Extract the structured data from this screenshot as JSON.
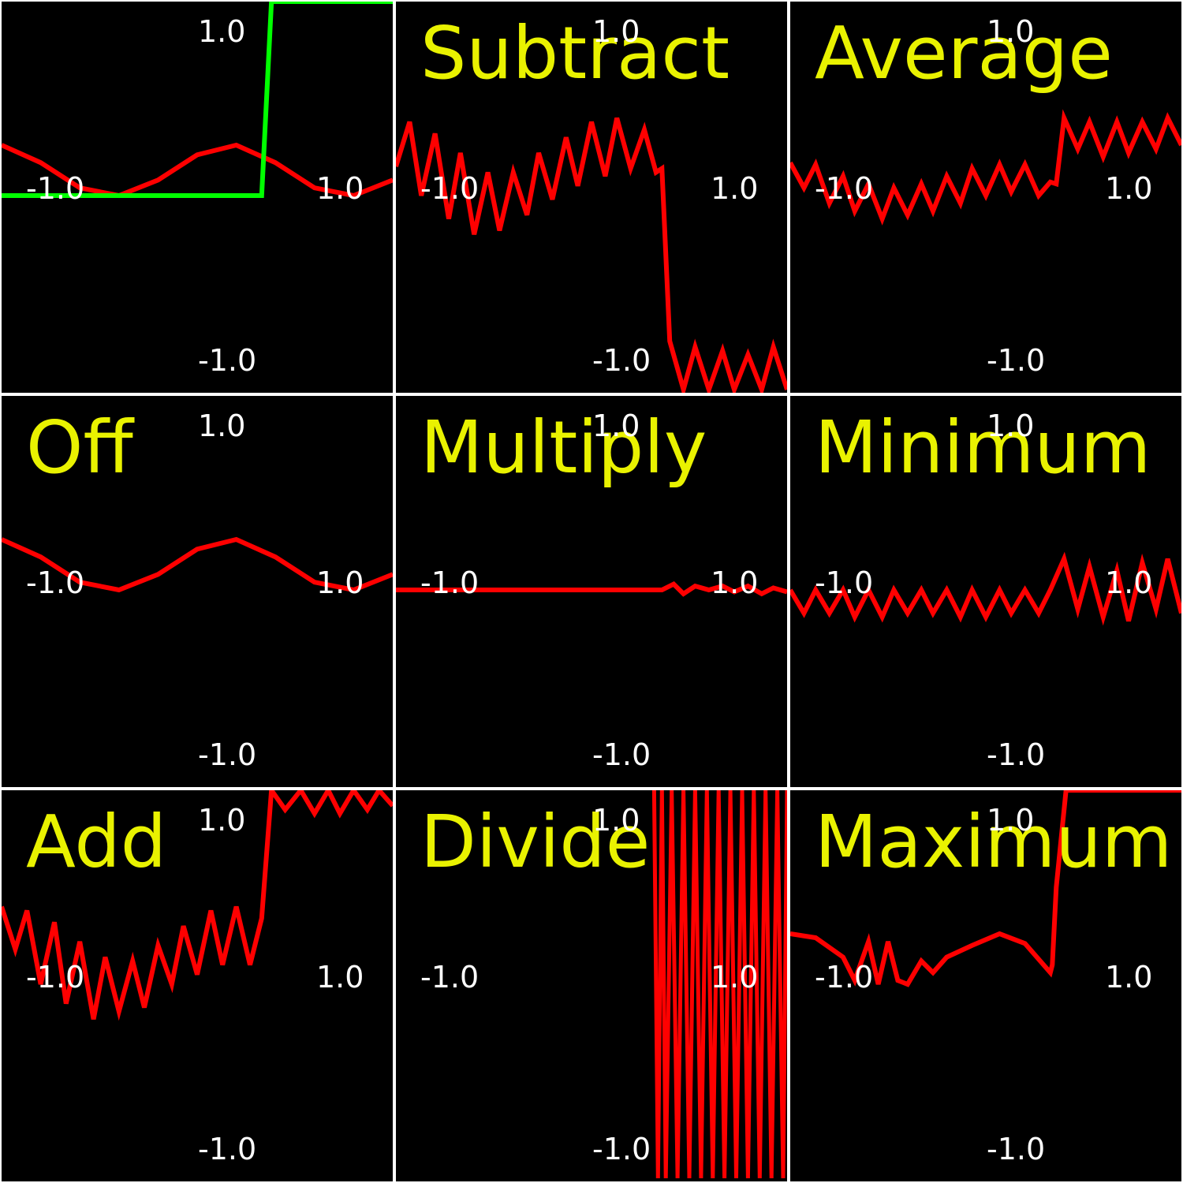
{
  "colors": {
    "background": "#000000",
    "grid_lines": "#ffffff",
    "title": "#e9f200",
    "axis_labels": "#ffffff",
    "result_curve": "#ff0000",
    "square_wave": "#00ff00"
  },
  "chart_data": [
    {
      "type": "line",
      "mode": "",
      "title": "",
      "xlim": [
        -1.0,
        1.0
      ],
      "ylim": [
        -1.0,
        1.0
      ],
      "tick_labels": {
        "top": "1.0",
        "bottom": "-1.0",
        "left": "-1.0",
        "right": "1.0"
      },
      "series": [
        {
          "color": "#ff0000",
          "x": [
            -1.0,
            -0.8,
            -0.6,
            -0.4,
            -0.2,
            0.0,
            0.2,
            0.4,
            0.6,
            0.8,
            1.0
          ],
          "y": [
            0.26,
            0.17,
            0.04,
            0.0,
            0.08,
            0.21,
            0.26,
            0.17,
            0.04,
            0.0,
            0.08
          ]
        },
        {
          "color": "#00ff00",
          "x": [
            -1.0,
            0.33,
            0.38,
            1.0
          ],
          "y": [
            0.0,
            0.0,
            1.0,
            1.0
          ]
        }
      ]
    },
    {
      "type": "line",
      "mode": "Subtract",
      "title": "Subtract",
      "xlim": [
        -1.0,
        1.0
      ],
      "ylim": [
        -1.0,
        1.0
      ],
      "tick_labels": {
        "top": "1.0",
        "bottom": "-1.0",
        "left": "-1.0",
        "right": "1.0"
      },
      "series": [
        {
          "color": "#ff0000",
          "x": [
            -1.0,
            -0.93,
            -0.87,
            -0.8,
            -0.73,
            -0.67,
            -0.6,
            -0.53,
            -0.47,
            -0.4,
            -0.33,
            -0.27,
            -0.2,
            -0.13,
            -0.07,
            0.0,
            0.07,
            0.13,
            0.2,
            0.27,
            0.33,
            0.36,
            0.4,
            0.47,
            0.53,
            0.6,
            0.67,
            0.73,
            0.8,
            0.87,
            0.93,
            1.0
          ],
          "y": [
            0.15,
            0.38,
            0.0,
            0.32,
            -0.12,
            0.22,
            -0.2,
            0.12,
            -0.18,
            0.12,
            -0.1,
            0.22,
            -0.02,
            0.3,
            0.05,
            0.38,
            0.1,
            0.4,
            0.14,
            0.34,
            0.12,
            0.14,
            -0.75,
            -1.0,
            -0.78,
            -1.0,
            -0.8,
            -1.0,
            -0.82,
            -1.0,
            -0.78,
            -1.0
          ]
        }
      ]
    },
    {
      "type": "line",
      "mode": "Average",
      "title": "Average",
      "xlim": [
        -1.0,
        1.0
      ],
      "ylim": [
        -1.0,
        1.0
      ],
      "tick_labels": {
        "top": "1.0",
        "bottom": "-1.0",
        "left": "-1.0",
        "right": "1.0"
      },
      "series": [
        {
          "color": "#ff0000",
          "x": [
            -1.0,
            -0.93,
            -0.87,
            -0.8,
            -0.73,
            -0.67,
            -0.6,
            -0.53,
            -0.47,
            -0.4,
            -0.33,
            -0.27,
            -0.2,
            -0.13,
            -0.07,
            0.0,
            0.07,
            0.13,
            0.2,
            0.27,
            0.33,
            0.36,
            0.4,
            0.47,
            0.53,
            0.6,
            0.67,
            0.73,
            0.8,
            0.87,
            0.93,
            1.0
          ],
          "y": [
            0.17,
            0.04,
            0.16,
            -0.04,
            0.1,
            -0.08,
            0.06,
            -0.12,
            0.04,
            -0.1,
            0.06,
            -0.08,
            0.1,
            -0.04,
            0.14,
            0.0,
            0.16,
            0.02,
            0.16,
            0.0,
            0.07,
            0.06,
            0.4,
            0.24,
            0.38,
            0.2,
            0.38,
            0.22,
            0.38,
            0.24,
            0.4,
            0.26
          ]
        }
      ]
    },
    {
      "type": "line",
      "mode": "Off",
      "title": "Off",
      "xlim": [
        -1.0,
        1.0
      ],
      "ylim": [
        -1.0,
        1.0
      ],
      "tick_labels": {
        "top": "1.0",
        "bottom": "-1.0",
        "left": "-1.0",
        "right": "1.0"
      },
      "series": [
        {
          "color": "#ff0000",
          "x": [
            -1.0,
            -0.8,
            -0.6,
            -0.4,
            -0.2,
            0.0,
            0.2,
            0.4,
            0.6,
            0.8,
            1.0
          ],
          "y": [
            0.26,
            0.17,
            0.04,
            0.0,
            0.08,
            0.21,
            0.26,
            0.17,
            0.04,
            0.0,
            0.08
          ]
        }
      ]
    },
    {
      "type": "line",
      "mode": "Multiply",
      "title": "Multiply",
      "xlim": [
        -1.0,
        1.0
      ],
      "ylim": [
        -1.0,
        1.0
      ],
      "tick_labels": {
        "top": "1.0",
        "bottom": "-1.0",
        "left": "-1.0",
        "right": "1.0"
      },
      "series": [
        {
          "color": "#ff0000",
          "x": [
            -1.0,
            -0.6,
            -0.2,
            0.2,
            0.36,
            0.42,
            0.47,
            0.53,
            0.6,
            0.67,
            0.73,
            0.8,
            0.87,
            0.93,
            1.0
          ],
          "y": [
            0.0,
            0.0,
            0.0,
            0.0,
            0.0,
            0.03,
            -0.02,
            0.02,
            0.0,
            0.02,
            -0.01,
            0.02,
            -0.02,
            0.01,
            -0.01
          ]
        }
      ]
    },
    {
      "type": "line",
      "mode": "Minimum",
      "title": "Minimum",
      "xlim": [
        -1.0,
        1.0
      ],
      "ylim": [
        -1.0,
        1.0
      ],
      "tick_labels": {
        "top": "1.0",
        "bottom": "-1.0",
        "left": "-1.0",
        "right": "1.0"
      },
      "series": [
        {
          "color": "#ff0000",
          "x": [
            -1.0,
            -0.93,
            -0.87,
            -0.8,
            -0.73,
            -0.67,
            -0.6,
            -0.53,
            -0.47,
            -0.4,
            -0.33,
            -0.27,
            -0.2,
            -0.13,
            -0.07,
            0.0,
            0.07,
            0.13,
            0.2,
            0.27,
            0.33,
            0.4,
            0.47,
            0.53,
            0.6,
            0.67,
            0.73,
            0.8,
            0.87,
            0.93,
            1.0
          ],
          "y": [
            0.0,
            -0.12,
            0.0,
            -0.12,
            0.0,
            -0.14,
            0.0,
            -0.14,
            0.0,
            -0.12,
            0.0,
            -0.12,
            0.0,
            -0.14,
            0.0,
            -0.14,
            0.0,
            -0.12,
            0.0,
            -0.12,
            0.0,
            0.16,
            -0.1,
            0.12,
            -0.14,
            0.1,
            -0.16,
            0.14,
            -0.1,
            0.16,
            -0.12
          ]
        }
      ]
    },
    {
      "type": "line",
      "mode": "Add",
      "title": "Add",
      "xlim": [
        -1.0,
        1.0
      ],
      "ylim": [
        -1.0,
        1.0
      ],
      "tick_labels": {
        "top": "1.0",
        "bottom": "-1.0",
        "left": "-1.0",
        "right": "1.0"
      },
      "series": [
        {
          "color": "#ff0000",
          "x": [
            -1.0,
            -0.93,
            -0.87,
            -0.8,
            -0.73,
            -0.67,
            -0.6,
            -0.53,
            -0.47,
            -0.4,
            -0.33,
            -0.27,
            -0.2,
            -0.13,
            -0.07,
            0.0,
            0.07,
            0.13,
            0.2,
            0.27,
            0.33,
            0.38,
            0.45,
            0.53,
            0.6,
            0.67,
            0.73,
            0.8,
            0.87,
            0.93,
            1.0
          ],
          "y": [
            0.4,
            0.18,
            0.38,
            0.0,
            0.32,
            -0.1,
            0.22,
            -0.18,
            0.14,
            -0.14,
            0.12,
            -0.12,
            0.2,
            0.0,
            0.3,
            0.05,
            0.38,
            0.1,
            0.4,
            0.1,
            0.34,
            1.0,
            0.9,
            1.0,
            0.88,
            1.0,
            0.88,
            1.0,
            0.9,
            1.0,
            0.92
          ]
        }
      ]
    },
    {
      "type": "line",
      "mode": "Divide",
      "title": "Divide",
      "xlim": [
        -1.0,
        1.0
      ],
      "ylim": [
        -1.0,
        1.0
      ],
      "tick_labels": {
        "top": "1.0",
        "bottom": "-1.0",
        "left": "-1.0",
        "right": "1.0"
      },
      "series": [
        {
          "color": "#ff0000",
          "x": [
            0.32,
            0.34,
            0.36,
            0.38,
            0.41,
            0.44,
            0.47,
            0.5,
            0.53,
            0.56,
            0.59,
            0.62,
            0.65,
            0.68,
            0.71,
            0.74,
            0.77,
            0.8,
            0.83,
            0.86,
            0.89,
            0.92,
            0.95,
            0.98,
            1.0
          ],
          "y": [
            1.0,
            -1.0,
            1.0,
            -1.0,
            1.0,
            -1.0,
            1.0,
            -1.0,
            1.0,
            -1.0,
            1.0,
            -1.0,
            1.0,
            -1.0,
            1.0,
            -1.0,
            1.0,
            -1.0,
            1.0,
            -1.0,
            1.0,
            -1.0,
            1.0,
            -1.0,
            1.0
          ]
        }
      ]
    },
    {
      "type": "line",
      "mode": "Maximum",
      "title": "Maximum",
      "xlim": [
        -1.0,
        1.0
      ],
      "ylim": [
        -1.0,
        1.0
      ],
      "tick_labels": {
        "top": "1.0",
        "bottom": "-1.0",
        "left": "-1.0",
        "right": "1.0"
      },
      "series": [
        {
          "color": "#ff0000",
          "x": [
            -1.0,
            -0.87,
            -0.73,
            -0.67,
            -0.6,
            -0.55,
            -0.5,
            -0.45,
            -0.4,
            -0.33,
            -0.27,
            -0.2,
            -0.07,
            0.07,
            0.2,
            0.33,
            0.34,
            0.36,
            0.41,
            0.6,
            0.8,
            1.0
          ],
          "y": [
            0.26,
            0.24,
            0.14,
            0.02,
            0.22,
            0.0,
            0.22,
            0.02,
            0.0,
            0.12,
            0.06,
            0.14,
            0.2,
            0.26,
            0.21,
            0.06,
            0.1,
            0.5,
            1.0,
            1.0,
            1.0,
            1.0
          ]
        }
      ]
    }
  ]
}
